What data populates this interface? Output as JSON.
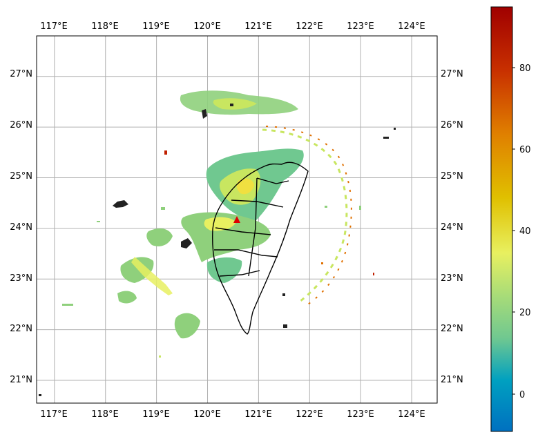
{
  "map": {
    "lon_ticks": [
      "117°E",
      "118°E",
      "119°E",
      "120°E",
      "121°E",
      "122°E",
      "123°E",
      "124°E"
    ],
    "lat_ticks": [
      "21°N",
      "22°N",
      "23°N",
      "24°N",
      "25°N",
      "26°N",
      "27°N"
    ],
    "lon_range": [
      116.65,
      124.5
    ],
    "lat_range": [
      20.55,
      27.8
    ],
    "gridlines": true,
    "radar_site": {
      "lon": 120.6,
      "lat": 24.15,
      "color": "#e00000",
      "icon": "triangle-marker-icon"
    },
    "land_boundary_color": "#000000"
  },
  "colorbar": {
    "ticks": [
      "0",
      "20",
      "40",
      "60",
      "80"
    ],
    "range": [
      -8,
      95
    ],
    "colormap": "#0070c0 → #00a0c0 → #70c890 → #a8dc78 → #e8f060 → #e0c000 → #e08000 → #c83000 → #a00000"
  },
  "echo_colors": {
    "weak": "#5fbfa0",
    "light": "#8fd07c",
    "moderate": "#c8e660",
    "strong": "#f0e040",
    "intense": "#e07000",
    "extreme": "#c02000"
  }
}
